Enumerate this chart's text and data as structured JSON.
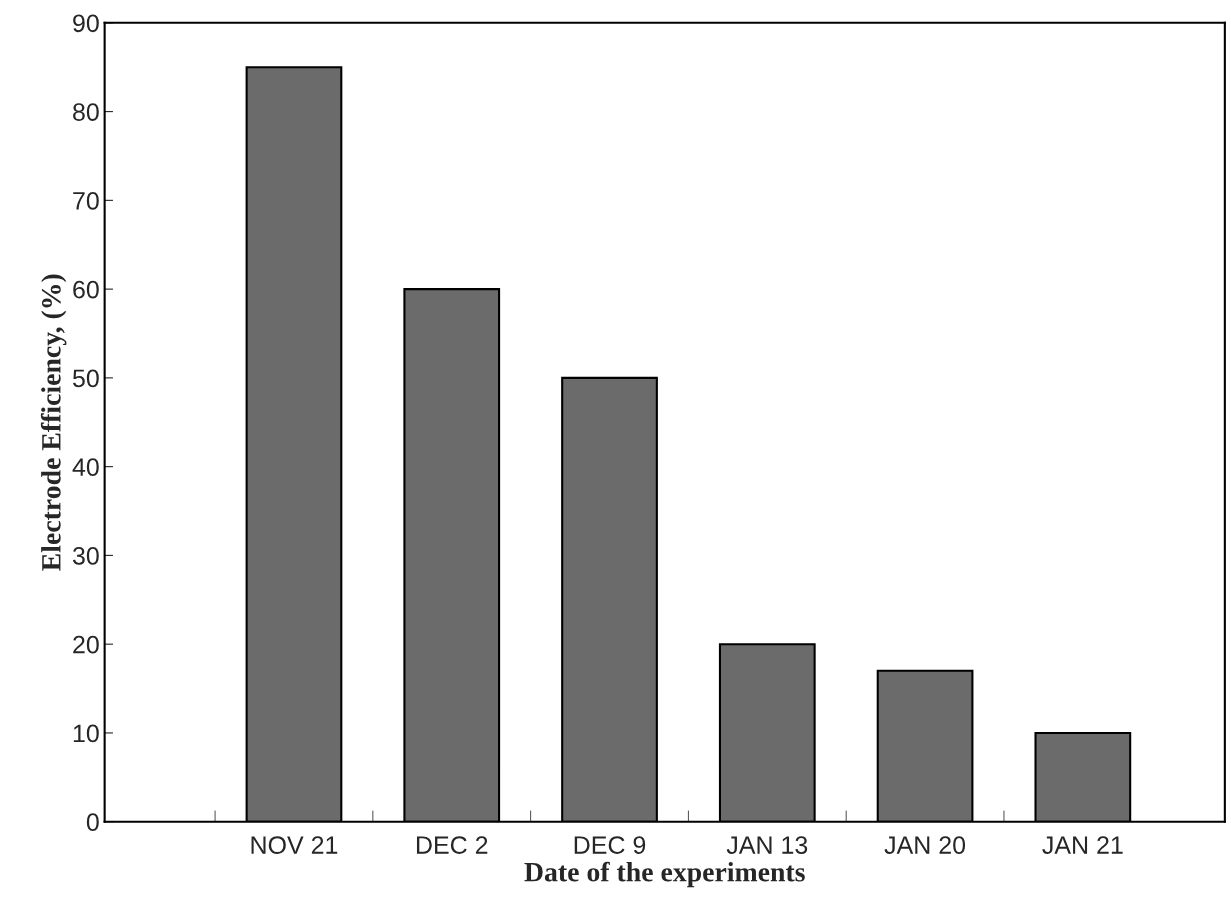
{
  "chart_data": {
    "type": "bar",
    "xlabel": "Date of the experiments",
    "ylabel": "Electrode Efficiency, (%)",
    "categories": [
      "NOV 21",
      "DEC 2",
      "DEC 9",
      "JAN 13",
      "JAN 20",
      "JAN 21"
    ],
    "values": [
      85,
      60,
      50,
      20,
      17,
      10
    ],
    "color": "#6b6b6b",
    "ylim": [
      0,
      90
    ],
    "yticks": [
      0,
      10,
      20,
      30,
      40,
      50,
      60,
      70,
      80,
      90
    ],
    "grid": false,
    "legend": false
  }
}
